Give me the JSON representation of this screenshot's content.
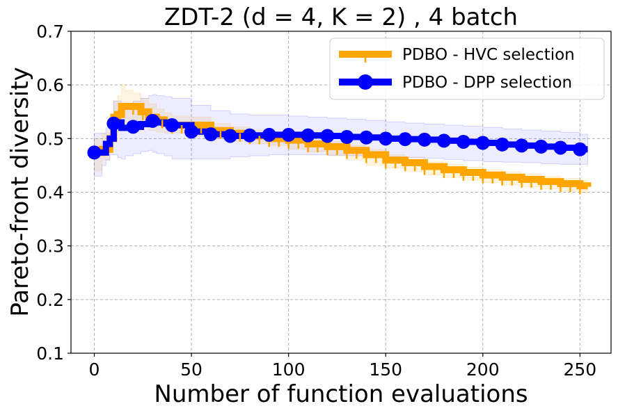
{
  "chart_data": {
    "type": "line",
    "title": "ZDT-2 (d = 4, K = 2) , 4 batch",
    "xlabel": "Number of function evaluations",
    "ylabel": "Pareto-front diversity",
    "xlim": [
      -12,
      266
    ],
    "ylim": [
      0.1,
      0.7
    ],
    "xticks": [
      0,
      50,
      100,
      150,
      200,
      250
    ],
    "yticks": [
      0.1,
      0.2,
      0.3,
      0.4,
      0.5,
      0.6,
      0.7
    ],
    "xtick_labels": [
      "0",
      "50",
      "100",
      "150",
      "200",
      "250"
    ],
    "ytick_labels": [
      "0.1",
      "0.2",
      "0.3",
      "0.4",
      "0.5",
      "0.6",
      "0.7"
    ],
    "grid": true,
    "legend_position": "top-right",
    "series": [
      {
        "name": "PDBO - HVC selection",
        "color": "#FFA500",
        "marker": "tri-down",
        "x": [
          0,
          4,
          8,
          10,
          12,
          14,
          16,
          20,
          24,
          28,
          32,
          36,
          40,
          50,
          60,
          70,
          80,
          90,
          100,
          110,
          120,
          130,
          140,
          150,
          160,
          170,
          180,
          190,
          200,
          210,
          220,
          230,
          240,
          250,
          254
        ],
        "y": [
          0.474,
          0.48,
          0.5,
          0.54,
          0.545,
          0.56,
          0.56,
          0.56,
          0.55,
          0.54,
          0.535,
          0.53,
          0.525,
          0.525,
          0.515,
          0.51,
          0.505,
          0.5,
          0.497,
          0.49,
          0.485,
          0.478,
          0.47,
          0.46,
          0.455,
          0.448,
          0.442,
          0.437,
          0.432,
          0.428,
          0.424,
          0.42,
          0.416,
          0.412,
          0.41
        ],
        "band_low": [
          0.42,
          0.44,
          0.46,
          0.5,
          0.52,
          0.525,
          0.53,
          0.53,
          0.525,
          0.52,
          0.515,
          0.512,
          0.51,
          0.51,
          0.505,
          0.5,
          0.495,
          0.49,
          0.487,
          0.48,
          0.475,
          0.468,
          0.46,
          0.45,
          0.445,
          0.438,
          0.432,
          0.427,
          0.422,
          0.418,
          0.414,
          0.41,
          0.406,
          0.402,
          0.4
        ],
        "band_high": [
          0.5,
          0.51,
          0.54,
          0.57,
          0.58,
          0.6,
          0.59,
          0.585,
          0.575,
          0.565,
          0.555,
          0.548,
          0.542,
          0.54,
          0.528,
          0.522,
          0.516,
          0.51,
          0.507,
          0.5,
          0.495,
          0.488,
          0.48,
          0.47,
          0.465,
          0.458,
          0.452,
          0.447,
          0.442,
          0.438,
          0.434,
          0.43,
          0.426,
          0.422,
          0.42
        ]
      },
      {
        "name": "PDBO - DPP selection",
        "color": "#0000FF",
        "marker": "circle",
        "x": [
          0,
          4,
          6,
          8,
          10,
          12,
          14,
          16,
          20,
          24,
          28,
          30,
          32,
          36,
          40,
          50,
          60,
          70,
          80,
          90,
          100,
          110,
          120,
          130,
          140,
          150,
          160,
          170,
          180,
          190,
          200,
          210,
          220,
          230,
          240,
          250,
          254
        ],
        "y": [
          0.474,
          0.474,
          0.49,
          0.5,
          0.528,
          0.53,
          0.52,
          0.52,
          0.522,
          0.527,
          0.53,
          0.533,
          0.53,
          0.528,
          0.525,
          0.513,
          0.508,
          0.505,
          0.506,
          0.507,
          0.507,
          0.506,
          0.505,
          0.503,
          0.502,
          0.5,
          0.499,
          0.498,
          0.496,
          0.494,
          0.492,
          0.489,
          0.487,
          0.485,
          0.483,
          0.48,
          0.48
        ],
        "band_low": [
          0.43,
          0.43,
          0.45,
          0.46,
          0.47,
          0.47,
          0.465,
          0.462,
          0.468,
          0.472,
          0.476,
          0.478,
          0.475,
          0.472,
          0.468,
          0.462,
          0.462,
          0.462,
          0.466,
          0.468,
          0.47,
          0.47,
          0.47,
          0.469,
          0.468,
          0.467,
          0.466,
          0.465,
          0.463,
          0.461,
          0.459,
          0.457,
          0.456,
          0.455,
          0.453,
          0.452,
          0.452
        ],
        "band_high": [
          0.51,
          0.51,
          0.52,
          0.54,
          0.57,
          0.57,
          0.565,
          0.565,
          0.57,
          0.575,
          0.58,
          0.582,
          0.58,
          0.578,
          0.575,
          0.562,
          0.552,
          0.546,
          0.544,
          0.544,
          0.542,
          0.54,
          0.538,
          0.536,
          0.534,
          0.531,
          0.529,
          0.527,
          0.525,
          0.523,
          0.521,
          0.518,
          0.516,
          0.514,
          0.512,
          0.508,
          0.508
        ]
      }
    ]
  }
}
